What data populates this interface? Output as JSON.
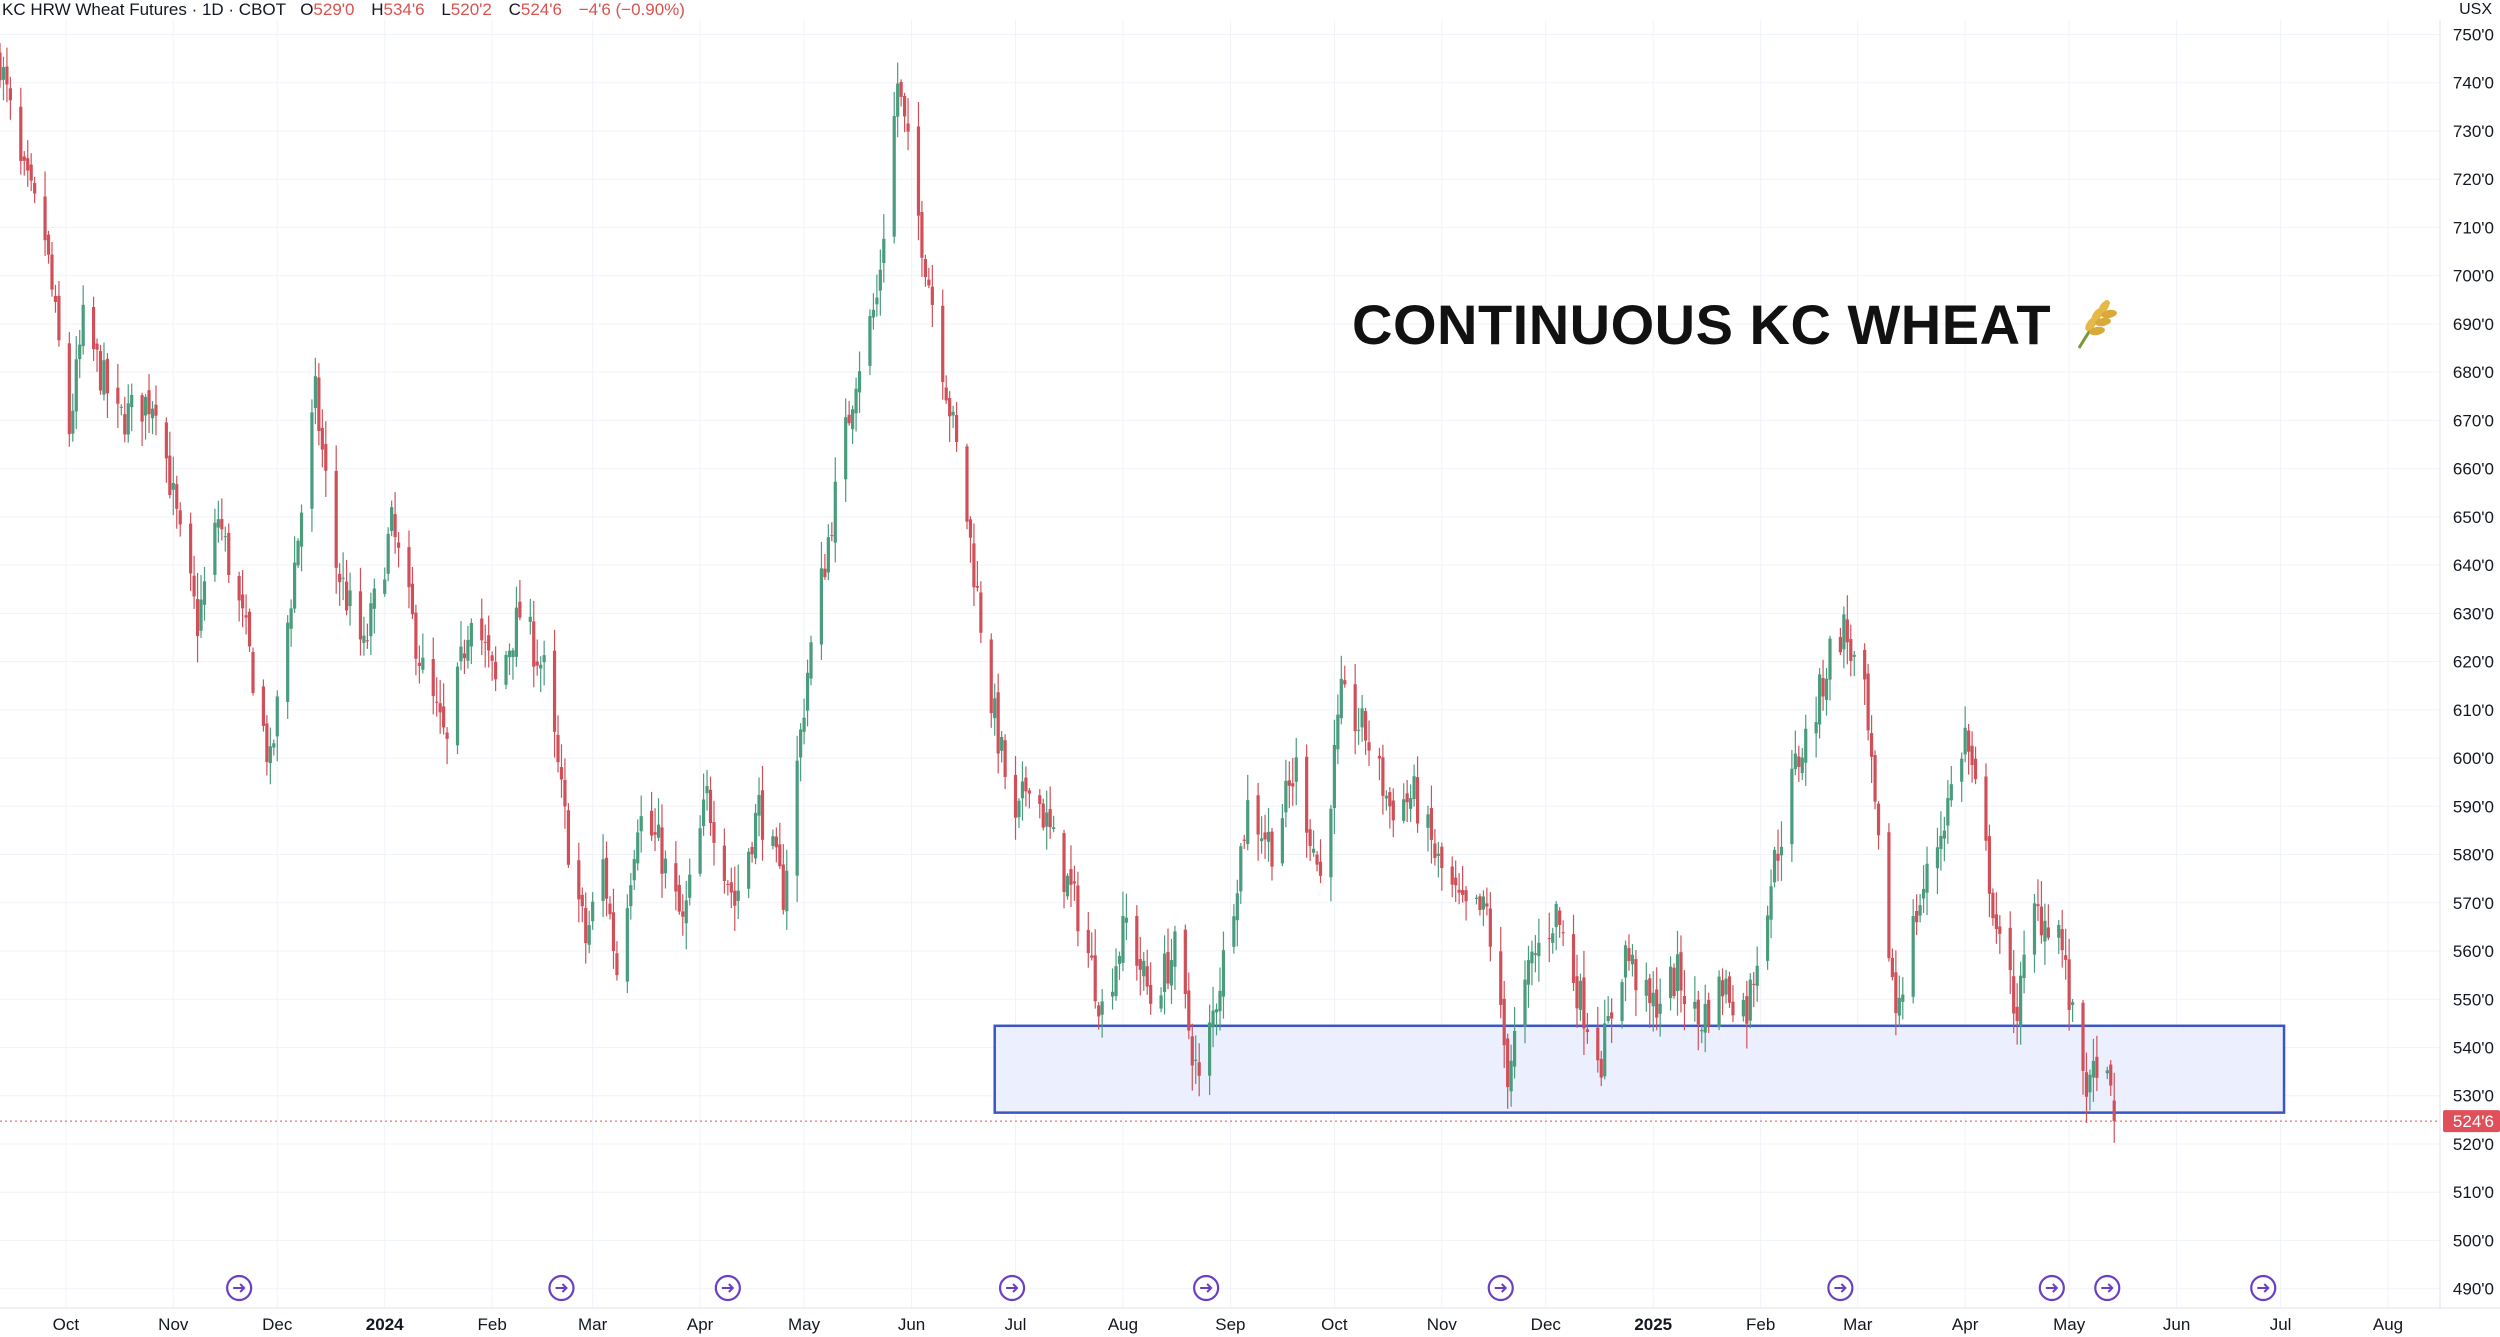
{
  "legend": {
    "symbol": "KC HRW Wheat Futures · 1D · CBOT",
    "open_label": "O",
    "open": "529'0",
    "high_label": "H",
    "high": "534'6",
    "low_label": "L",
    "low": "520'2",
    "close_label": "C",
    "close": "524'6",
    "change": "−4'6 (−0.90%)"
  },
  "currency": "USX",
  "overlay_title": "CONTINUOUS KC WHEAT",
  "colors": {
    "up": "#4a9c7d",
    "down": "#d0505a",
    "zone_fill": "#e9ecfd",
    "zone_stroke": "#3a55c8",
    "price_tag": "#e0505a",
    "event_icon": "#6a3fc4"
  },
  "chart_data": {
    "type": "candlestick",
    "ylim": [
      486,
      753
    ],
    "y_ticks": [
      "490'0",
      "500'0",
      "510'0",
      "520'0",
      "530'0",
      "540'0",
      "550'0",
      "560'0",
      "570'0",
      "580'0",
      "590'0",
      "600'0",
      "610'0",
      "620'0",
      "630'0",
      "640'0",
      "650'0",
      "660'0",
      "670'0",
      "680'0",
      "690'0",
      "700'0",
      "710'0",
      "720'0",
      "730'0",
      "740'0",
      "750'0"
    ],
    "x_labels": [
      {
        "label": "Oct",
        "date": "2023-10-01"
      },
      {
        "label": "Nov",
        "date": "2023-11-01"
      },
      {
        "label": "Dec",
        "date": "2023-12-01"
      },
      {
        "label": "2024",
        "date": "2024-01-01",
        "bold": true
      },
      {
        "label": "Feb",
        "date": "2024-02-01"
      },
      {
        "label": "Mar",
        "date": "2024-03-01"
      },
      {
        "label": "Apr",
        "date": "2024-04-01"
      },
      {
        "label": "May",
        "date": "2024-05-01"
      },
      {
        "label": "Jun",
        "date": "2024-06-01"
      },
      {
        "label": "Jul",
        "date": "2024-07-01"
      },
      {
        "label": "Aug",
        "date": "2024-08-01"
      },
      {
        "label": "Sep",
        "date": "2024-09-01"
      },
      {
        "label": "Oct",
        "date": "2024-10-01"
      },
      {
        "label": "Nov",
        "date": "2024-11-01"
      },
      {
        "label": "Dec",
        "date": "2024-12-01"
      },
      {
        "label": "2025",
        "date": "2025-01-01",
        "bold": true
      },
      {
        "label": "Feb",
        "date": "2025-02-01"
      },
      {
        "label": "Mar",
        "date": "2025-03-01"
      },
      {
        "label": "Apr",
        "date": "2025-04-01"
      },
      {
        "label": "May",
        "date": "2025-05-01"
      },
      {
        "label": "Jun",
        "date": "2025-06-01"
      },
      {
        "label": "Jul",
        "date": "2025-07-01"
      },
      {
        "label": "Aug",
        "date": "2025-08-01"
      }
    ],
    "anchors": [
      [
        "2023-09-12",
        745
      ],
      [
        "2023-09-18",
        722
      ],
      [
        "2023-09-25",
        708
      ],
      [
        "2023-10-02",
        668
      ],
      [
        "2023-10-06",
        690
      ],
      [
        "2023-10-16",
        670
      ],
      [
        "2023-10-27",
        675
      ],
      [
        "2023-11-03",
        645
      ],
      [
        "2023-11-08",
        628
      ],
      [
        "2023-11-14",
        650
      ],
      [
        "2023-11-22",
        625
      ],
      [
        "2023-11-29",
        598
      ],
      [
        "2023-12-06",
        640
      ],
      [
        "2023-12-12",
        675
      ],
      [
        "2023-12-18",
        640
      ],
      [
        "2023-12-26",
        622
      ],
      [
        "2024-01-03",
        648
      ],
      [
        "2024-01-12",
        618
      ],
      [
        "2024-01-19",
        602
      ],
      [
        "2024-01-26",
        632
      ],
      [
        "2024-02-02",
        615
      ],
      [
        "2024-02-09",
        630
      ],
      [
        "2024-02-16",
        618
      ],
      [
        "2024-02-23",
        582
      ],
      [
        "2024-02-28",
        562
      ],
      [
        "2024-03-04",
        578
      ],
      [
        "2024-03-08",
        556
      ],
      [
        "2024-03-14",
        588
      ],
      [
        "2024-03-20",
        582
      ],
      [
        "2024-03-27",
        565
      ],
      [
        "2024-04-03",
        592
      ],
      [
        "2024-04-11",
        570
      ],
      [
        "2024-04-18",
        590
      ],
      [
        "2024-04-25",
        572
      ],
      [
        "2024-05-02",
        618
      ],
      [
        "2024-05-09",
        650
      ],
      [
        "2024-05-16",
        680
      ],
      [
        "2024-05-22",
        695
      ],
      [
        "2024-05-28",
        740
      ],
      [
        "2024-06-03",
        712
      ],
      [
        "2024-06-10",
        682
      ],
      [
        "2024-06-17",
        650
      ],
      [
        "2024-06-24",
        612
      ],
      [
        "2024-07-01",
        585
      ],
      [
        "2024-07-05",
        597
      ],
      [
        "2024-07-12",
        582
      ],
      [
        "2024-07-19",
        568
      ],
      [
        "2024-07-26",
        548
      ],
      [
        "2024-08-02",
        566
      ],
      [
        "2024-08-09",
        550
      ],
      [
        "2024-08-16",
        560
      ],
      [
        "2024-08-23",
        532
      ],
      [
        "2024-08-30",
        558
      ],
      [
        "2024-09-06",
        590
      ],
      [
        "2024-09-13",
        582
      ],
      [
        "2024-09-20",
        598
      ],
      [
        "2024-09-27",
        575
      ],
      [
        "2024-10-03",
        612
      ],
      [
        "2024-10-10",
        605
      ],
      [
        "2024-10-17",
        590
      ],
      [
        "2024-10-24",
        592
      ],
      [
        "2024-10-31",
        578
      ],
      [
        "2024-11-07",
        568
      ],
      [
        "2024-11-14",
        568
      ],
      [
        "2024-11-20",
        535
      ],
      [
        "2024-11-27",
        558
      ],
      [
        "2024-12-04",
        568
      ],
      [
        "2024-12-11",
        550
      ],
      [
        "2024-12-17",
        538
      ],
      [
        "2024-12-24",
        560
      ],
      [
        "2024-12-31",
        548
      ],
      [
        "2025-01-08",
        555
      ],
      [
        "2025-01-14",
        545
      ],
      [
        "2025-01-21",
        553
      ],
      [
        "2025-01-28",
        548
      ],
      [
        "2025-02-04",
        575
      ],
      [
        "2025-02-11",
        598
      ],
      [
        "2025-02-17",
        610
      ],
      [
        "2025-02-21",
        622
      ],
      [
        "2025-02-25",
        627
      ],
      [
        "2025-03-03",
        612
      ],
      [
        "2025-03-07",
        580
      ],
      [
        "2025-03-12",
        548
      ],
      [
        "2025-03-18",
        568
      ],
      [
        "2025-03-25",
        585
      ],
      [
        "2025-04-01",
        605
      ],
      [
        "2025-04-07",
        580
      ],
      [
        "2025-04-11",
        560
      ],
      [
        "2025-04-16",
        548
      ],
      [
        "2025-04-21",
        568
      ],
      [
        "2025-04-28",
        565
      ],
      [
        "2025-05-02",
        545
      ],
      [
        "2025-05-07",
        530
      ],
      [
        "2025-05-09",
        538
      ],
      [
        "2025-05-13",
        529
      ],
      [
        "2025-05-14",
        524.75
      ]
    ],
    "support_zone": {
      "from": "2024-06-25",
      "to": "2025-07-02",
      "low": 526.5,
      "high": 544.5
    },
    "last_price": {
      "value": 524.75,
      "label": "524'6"
    },
    "event_markers": [
      "2023-11-20",
      "2024-02-21",
      "2024-04-09",
      "2024-06-30",
      "2024-08-25",
      "2024-11-18",
      "2025-02-24",
      "2025-04-26",
      "2025-05-12",
      "2025-06-26"
    ],
    "grid": true,
    "legend_position": "top-left"
  }
}
